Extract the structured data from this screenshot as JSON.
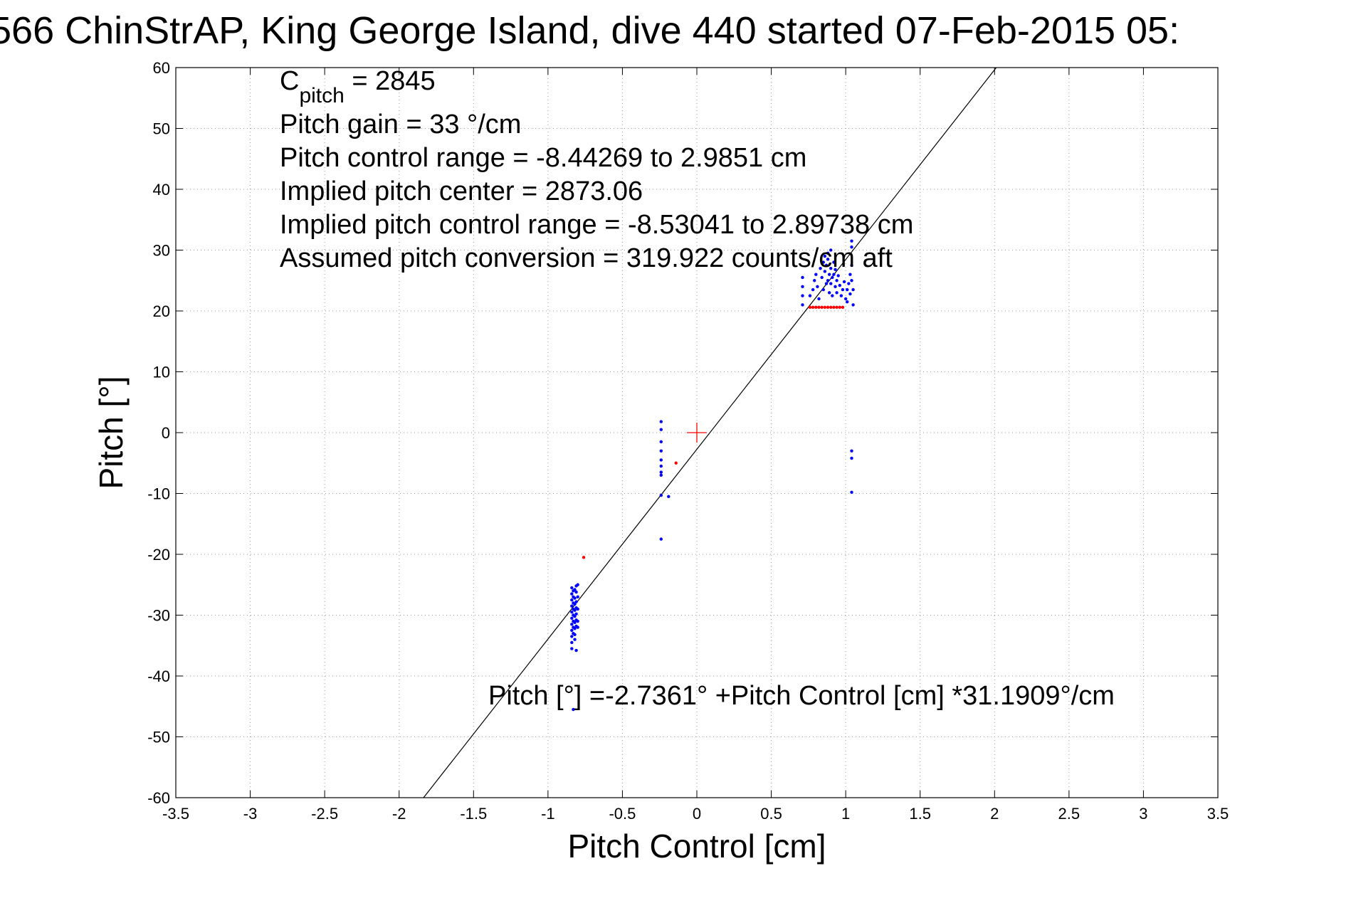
{
  "chart_data": {
    "type": "scatter",
    "title": "566 ChinStrAP, King George Island, dive 440 started 07-Feb-2015 05:",
    "xlabel": "Pitch Control [cm]",
    "ylabel": "Pitch [°]",
    "xlim": [
      -3.5,
      3.5
    ],
    "ylim": [
      -60,
      60
    ],
    "grid": true,
    "x_ticks": [
      -3.5,
      -3,
      -2.5,
      -2,
      -1.5,
      -1,
      -0.5,
      0,
      0.5,
      1,
      1.5,
      2,
      2.5,
      3,
      3.5
    ],
    "x_tick_labels": [
      "-3.5",
      "-3",
      "-2.5",
      "-2",
      "-1.5",
      "-1",
      "-0.5",
      "0",
      "0.5",
      "1",
      "1.5",
      "2",
      "2.5",
      "3",
      "3.5"
    ],
    "y_ticks": [
      -60,
      -50,
      -40,
      -30,
      -20,
      -10,
      0,
      10,
      20,
      30,
      40,
      50,
      60
    ],
    "y_tick_labels": [
      "-60",
      "-50",
      "-40",
      "-30",
      "-20",
      "-10",
      "0",
      "10",
      "20",
      "30",
      "40",
      "50",
      "60"
    ],
    "fit_line": {
      "intercept": -2.7361,
      "slope": 31.1909,
      "color": "#000000"
    },
    "center_marker": {
      "x": 0,
      "y": 0,
      "color": "#ff0000"
    },
    "series": [
      {
        "color": "#0000ff",
        "points": [
          [
            -0.84,
            -25.5
          ],
          [
            -0.84,
            -26.5
          ],
          [
            -0.84,
            -27.5
          ],
          [
            -0.84,
            -28.5
          ],
          [
            -0.84,
            -29.5
          ],
          [
            -0.84,
            -30.5
          ],
          [
            -0.84,
            -31.5
          ],
          [
            -0.84,
            -32.5
          ],
          [
            -0.84,
            -33.5
          ],
          [
            -0.84,
            -34.5
          ],
          [
            -0.84,
            -35.5
          ],
          [
            -0.83,
            -26.0
          ],
          [
            -0.83,
            -27.0
          ],
          [
            -0.83,
            -28.0
          ],
          [
            -0.83,
            -29.0
          ],
          [
            -0.83,
            -30.0
          ],
          [
            -0.83,
            -31.0
          ],
          [
            -0.83,
            -32.0
          ],
          [
            -0.83,
            -33.0
          ],
          [
            -0.82,
            -25.8
          ],
          [
            -0.82,
            -27.2
          ],
          [
            -0.82,
            -28.2
          ],
          [
            -0.82,
            -29.2
          ],
          [
            -0.82,
            -30.2
          ],
          [
            -0.82,
            -31.2
          ],
          [
            -0.82,
            -32.2
          ],
          [
            -0.82,
            -33.2
          ],
          [
            -0.82,
            -34.0
          ],
          [
            -0.81,
            -25.2
          ],
          [
            -0.81,
            -26.2
          ],
          [
            -0.81,
            -27.8
          ],
          [
            -0.81,
            -28.8
          ],
          [
            -0.81,
            -29.8
          ],
          [
            -0.81,
            -30.8
          ],
          [
            -0.81,
            -31.8
          ],
          [
            -0.81,
            -35.8
          ],
          [
            -0.8,
            -25.0
          ],
          [
            -0.8,
            -27.0
          ],
          [
            -0.8,
            -29.0
          ],
          [
            -0.8,
            -31.0
          ],
          [
            -0.8,
            -32.0
          ],
          [
            -0.83,
            -45.5
          ],
          [
            -0.24,
            1.8
          ],
          [
            -0.24,
            0.5
          ],
          [
            -0.24,
            -1.5
          ],
          [
            -0.24,
            -3.0
          ],
          [
            -0.24,
            -4.5
          ],
          [
            -0.24,
            -5.5
          ],
          [
            -0.24,
            -6.5
          ],
          [
            -0.24,
            -7.0
          ],
          [
            -0.24,
            -10.3
          ],
          [
            -0.24,
            -17.5
          ],
          [
            -0.19,
            -10.5
          ],
          [
            1.04,
            -3.0
          ],
          [
            1.04,
            -4.2
          ],
          [
            1.04,
            -9.8
          ],
          [
            0.71,
            21.0
          ],
          [
            0.71,
            22.5
          ],
          [
            0.71,
            24.0
          ],
          [
            0.71,
            25.5
          ],
          [
            0.76,
            22.5
          ],
          [
            0.78,
            23.5
          ],
          [
            0.79,
            25.0
          ],
          [
            0.8,
            26.0
          ],
          [
            0.81,
            24.0
          ],
          [
            0.82,
            22.0
          ],
          [
            0.83,
            27.0
          ],
          [
            0.84,
            25.5
          ],
          [
            0.85,
            28.0
          ],
          [
            0.85,
            23.5
          ],
          [
            0.86,
            26.5
          ],
          [
            0.86,
            29.0
          ],
          [
            0.87,
            24.5
          ],
          [
            0.87,
            27.5
          ],
          [
            0.88,
            25.0
          ],
          [
            0.88,
            28.5
          ],
          [
            0.89,
            23.0
          ],
          [
            0.89,
            26.0
          ],
          [
            0.9,
            24.5
          ],
          [
            0.9,
            27.0
          ],
          [
            0.91,
            25.5
          ],
          [
            0.91,
            22.5
          ],
          [
            0.92,
            26.0
          ],
          [
            0.92,
            28.0
          ],
          [
            0.93,
            24.0
          ],
          [
            0.93,
            26.8
          ],
          [
            0.94,
            25.0
          ],
          [
            0.94,
            23.0
          ],
          [
            0.95,
            25.8
          ],
          [
            0.96,
            24.2
          ],
          [
            0.97,
            22.5
          ],
          [
            0.98,
            23.5
          ],
          [
            0.99,
            24.8
          ],
          [
            1.0,
            22.0
          ],
          [
            1.01,
            23.5
          ],
          [
            1.01,
            21.5
          ],
          [
            1.02,
            24.5
          ],
          [
            1.03,
            26.0
          ],
          [
            1.03,
            22.8
          ],
          [
            1.04,
            25.0
          ],
          [
            1.04,
            27.5
          ],
          [
            1.04,
            31.5
          ],
          [
            1.04,
            30.5
          ],
          [
            1.05,
            23.5
          ],
          [
            1.05,
            21.0
          ],
          [
            0.88,
            29.5
          ],
          [
            0.9,
            30.0
          ]
        ]
      },
      {
        "color": "#ff0000",
        "points": [
          [
            0.76,
            20.6
          ],
          [
            0.78,
            20.6
          ],
          [
            0.8,
            20.6
          ],
          [
            0.82,
            20.6
          ],
          [
            0.84,
            20.6
          ],
          [
            0.86,
            20.6
          ],
          [
            0.88,
            20.6
          ],
          [
            0.9,
            20.6
          ],
          [
            0.92,
            20.6
          ],
          [
            0.94,
            20.6
          ],
          [
            0.96,
            20.6
          ],
          [
            0.98,
            20.6
          ],
          [
            -0.14,
            -5.0
          ],
          [
            -0.76,
            -20.5
          ]
        ]
      }
    ],
    "annotations": [
      {
        "base": "C",
        "sub": "pitch",
        "rest": " = 2845"
      },
      {
        "text": "Pitch gain = 33 °/cm"
      },
      {
        "text": "Pitch control range = -8.44269 to 2.9851 cm"
      },
      {
        "text": "Implied pitch center = 2873.06"
      },
      {
        "text": "Implied pitch control range = -8.53041 to 2.89738 cm"
      },
      {
        "text": "Assumed pitch conversion = 319.922 counts/cm aft"
      }
    ],
    "fit_label": "Pitch [°] =-2.7361° +Pitch Control [cm] *31.1909°/cm"
  }
}
